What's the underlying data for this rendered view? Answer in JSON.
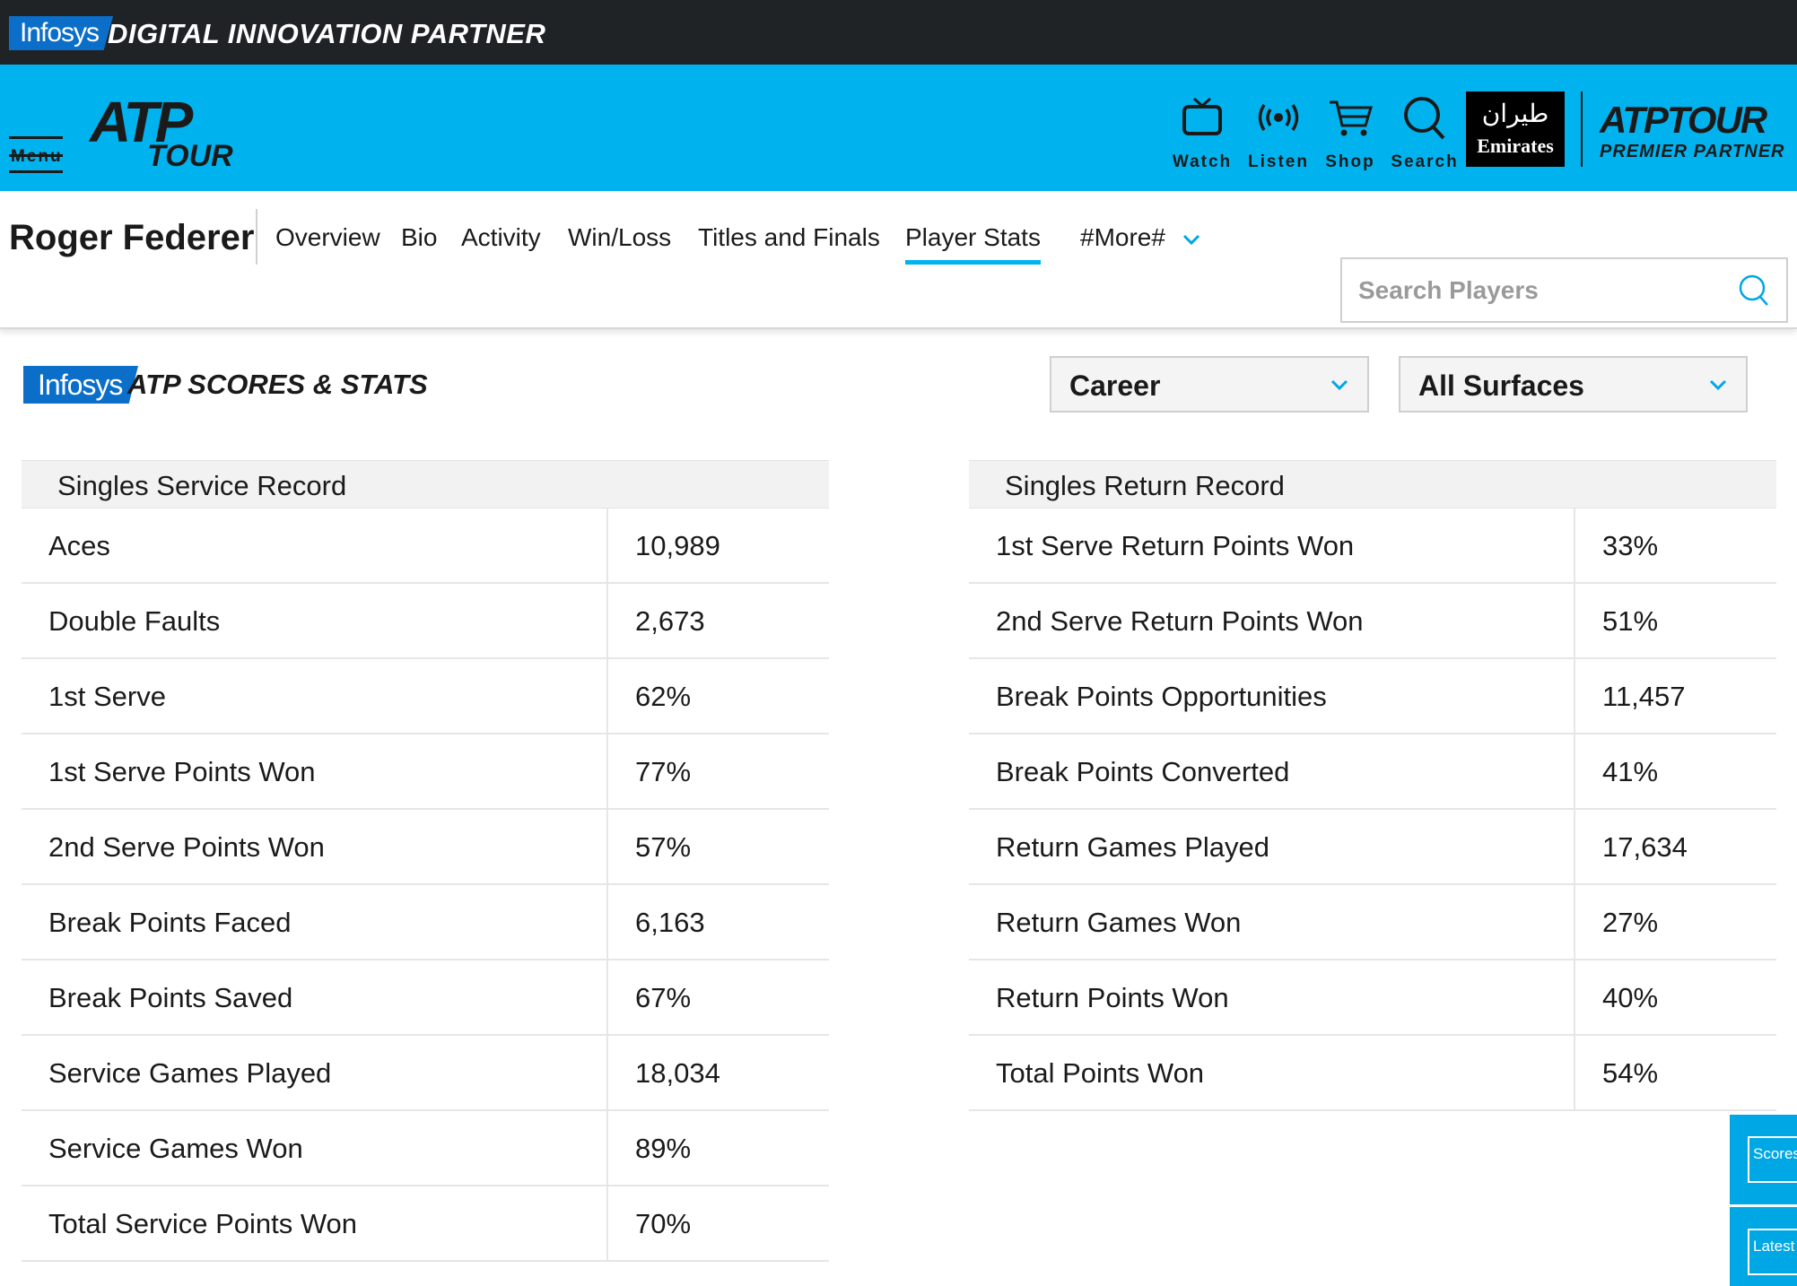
{
  "topbar": {
    "infosys_label": "Infosys",
    "title": "DIGITAL INNOVATION PARTNER"
  },
  "header": {
    "menu_label": "Menu",
    "logo_atp": "ATP",
    "logo_tour": "TOUR",
    "icons": [
      {
        "name": "tv-icon",
        "label": "Watch"
      },
      {
        "name": "broadcast-icon",
        "label": "Listen"
      },
      {
        "name": "cart-icon",
        "label": "Shop"
      },
      {
        "name": "search-icon",
        "label": "Search"
      }
    ],
    "sponsor": {
      "arabic": "طيران",
      "name": "Emirates"
    },
    "partner": {
      "line1": "ATPTOUR",
      "line2": "PREMIER PARTNER"
    },
    "colors": {
      "header_bg": "#00b3ef",
      "topbar_bg": "#1f2326"
    }
  },
  "player_nav": {
    "player_name": "Roger Federer",
    "items": [
      {
        "label": "Overview",
        "active": false
      },
      {
        "label": "Bio",
        "active": false
      },
      {
        "label": "Activity",
        "active": false
      },
      {
        "label": "Win/Loss",
        "active": false
      },
      {
        "label": "Titles and Finals",
        "active": false
      },
      {
        "label": "Player Stats",
        "active": true
      },
      {
        "label": "#More#",
        "active": false
      }
    ],
    "search_placeholder": "Search Players"
  },
  "stats_banner": {
    "infosys_label": "Infosys",
    "title": "ATP SCORES & STATS",
    "period_select": "Career",
    "surface_select": "All Surfaces"
  },
  "service_record": {
    "title": "Singles Service Record",
    "rows": [
      {
        "label": "Aces",
        "value": "10,989"
      },
      {
        "label": "Double Faults",
        "value": "2,673"
      },
      {
        "label": "1st Serve",
        "value": "62%"
      },
      {
        "label": "1st Serve Points Won",
        "value": "77%"
      },
      {
        "label": "2nd Serve Points Won",
        "value": "57%"
      },
      {
        "label": "Break Points Faced",
        "value": "6,163"
      },
      {
        "label": "Break Points Saved",
        "value": "67%"
      },
      {
        "label": "Service Games Played",
        "value": "18,034"
      },
      {
        "label": "Service Games Won",
        "value": "89%"
      },
      {
        "label": "Total Service Points Won",
        "value": "70%"
      }
    ]
  },
  "return_record": {
    "title": "Singles Return Record",
    "rows": [
      {
        "label": "1st Serve Return Points Won",
        "value": "33%"
      },
      {
        "label": "2nd Serve Return Points Won",
        "value": "51%"
      },
      {
        "label": "Break Points Opportunities",
        "value": "11,457"
      },
      {
        "label": "Break Points Converted",
        "value": "41%"
      },
      {
        "label": "Return Games Played",
        "value": "17,634"
      },
      {
        "label": "Return Games Won",
        "value": "27%"
      },
      {
        "label": "Return Points Won",
        "value": "40%"
      },
      {
        "label": "Total Points Won",
        "value": "54%"
      }
    ]
  },
  "side_widgets": {
    "scores": "Scores",
    "latest": "Latest"
  }
}
